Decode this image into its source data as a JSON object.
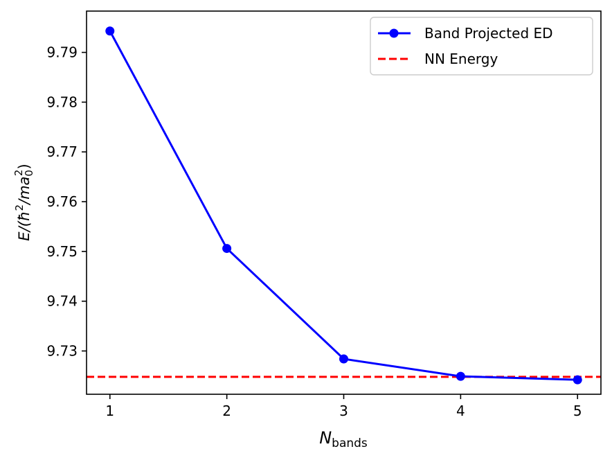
{
  "chart_data": {
    "type": "line",
    "title": "",
    "xlabel": {
      "main": "N",
      "sub": "bands"
    },
    "ylabel": {
      "prefix": "E/(",
      "hbar": "ħ",
      "sup1": "2",
      "mid": "/ma",
      "sub": "0",
      "sup2": "2",
      "suffix": ")"
    },
    "xlim": [
      0.8,
      5.2
    ],
    "ylim": [
      9.7213,
      9.7983
    ],
    "xticks": [
      1,
      2,
      3,
      4,
      5
    ],
    "xtick_labels": [
      "1",
      "2",
      "3",
      "4",
      "5"
    ],
    "yticks": [
      9.73,
      9.74,
      9.75,
      9.76,
      9.77,
      9.78,
      9.79
    ],
    "ytick_labels": [
      "9.73",
      "9.74",
      "9.75",
      "9.76",
      "9.77",
      "9.78",
      "9.79"
    ],
    "series": [
      {
        "name": "Band Projected ED",
        "color": "#0000ff",
        "x": [
          1,
          2,
          3,
          4,
          5
        ],
        "values": [
          9.7943,
          9.7506,
          9.7284,
          9.7249,
          9.7242
        ]
      }
    ],
    "hlines": [
      {
        "name": "NN Energy",
        "color": "#ff0000",
        "value": 9.7248,
        "style": "dashed"
      }
    ],
    "legend": {
      "position": "top-right",
      "entries": [
        "Band Projected ED",
        "NN Energy"
      ]
    },
    "grid": false
  }
}
